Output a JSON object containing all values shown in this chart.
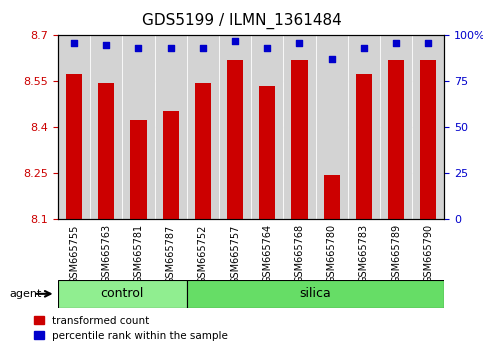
{
  "title": "GDS5199 / ILMN_1361484",
  "samples": [
    "GSM665755",
    "GSM665763",
    "GSM665781",
    "GSM665787",
    "GSM665752",
    "GSM665757",
    "GSM665764",
    "GSM665768",
    "GSM665780",
    "GSM665783",
    "GSM665789",
    "GSM665790"
  ],
  "red_values": [
    8.575,
    8.545,
    8.425,
    8.455,
    8.545,
    8.62,
    8.535,
    8.62,
    8.245,
    8.575,
    8.62,
    8.62
  ],
  "blue_values": [
    96,
    95,
    93,
    93,
    93,
    97,
    93,
    96,
    87,
    93,
    96,
    96
  ],
  "y_min": 8.1,
  "y_max": 8.7,
  "y_ticks": [
    8.1,
    8.25,
    8.4,
    8.55,
    8.7
  ],
  "y2_ticks": [
    0,
    25,
    50,
    75,
    100
  ],
  "y2_labels": [
    "0",
    "25",
    "50",
    "75",
    "100%"
  ],
  "control_count": 4,
  "silica_count": 8,
  "bar_color": "#cc0000",
  "blue_color": "#0000cc",
  "control_color": "#90ee90",
  "silica_color": "#66dd66",
  "bg_color": "#d3d3d3",
  "legend_red_label": "transformed count",
  "legend_blue_label": "percentile rank within the sample",
  "agent_label": "agent",
  "control_label": "control",
  "silica_label": "silica"
}
